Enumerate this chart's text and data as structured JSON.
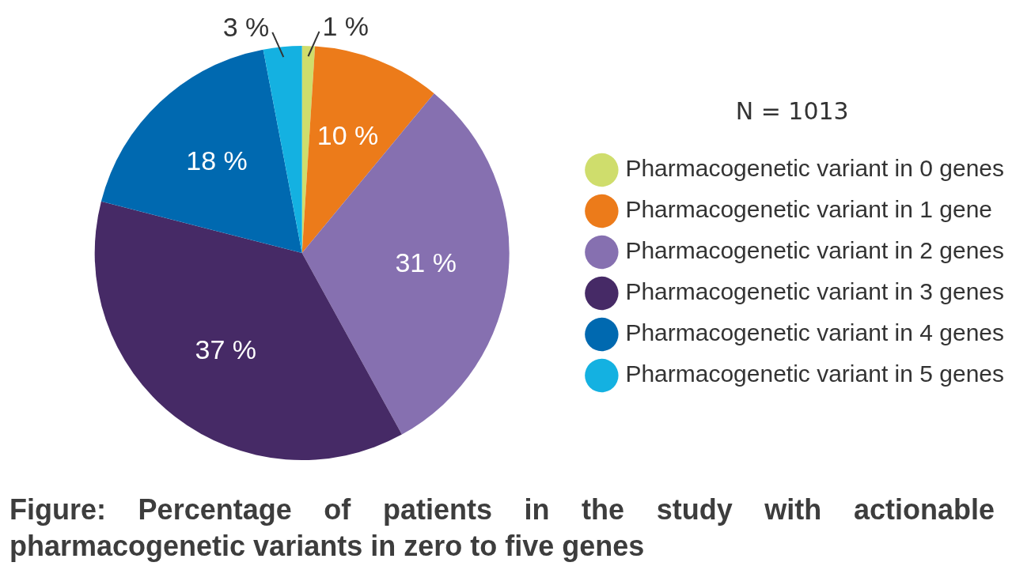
{
  "chart_data": {
    "type": "pie",
    "legend_title": "N = 1013",
    "legend": "right",
    "categories": [
      "Pharmacogenetic variant in 0 genes",
      "Pharmacogenetic variant in 1 gene",
      "Pharmacogenetic variant in 2 genes",
      "Pharmacogenetic variant in 3 genes",
      "Pharmacogenetic variant in 4 genes",
      "Pharmacogenetic variant in 5 genes"
    ],
    "values": [
      1,
      10,
      31,
      37,
      18,
      3
    ],
    "value_labels": [
      "1 %",
      "10 %",
      "31 %",
      "37 %",
      "18 %",
      "3 %"
    ],
    "colors": [
      "#cfdd6c",
      "#ec7b1a",
      "#8670b0",
      "#462a66",
      "#0069b0",
      "#14b1e1"
    ],
    "annotations": [
      "Figure: Percentage of patients in the study with actionable pharmacogenetic variants in zero to five genes"
    ]
  }
}
